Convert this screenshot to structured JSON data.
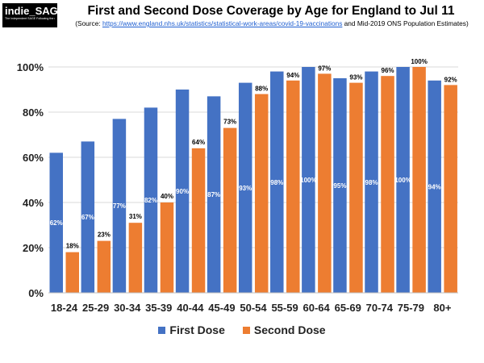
{
  "logo": {
    "name": "indie_SAGE",
    "tagline": "The Independent SAGE Following the evidence"
  },
  "title": "First and Second Dose Coverage by Age for England to Jul 11",
  "source": {
    "prefix": "(Source: ",
    "url": "https://www.england.nhs.uk/statistics/statistical-work-areas/covid-19-vaccinations",
    "suffix": " and Mid-2019 ONS Population Estimates)"
  },
  "colors": {
    "first_dose": "#4472C4",
    "second_dose": "#ED7D31",
    "grid": "#d9d9d9"
  },
  "chart_data": {
    "type": "bar",
    "categories": [
      "18-24",
      "25-29",
      "30-34",
      "35-39",
      "40-44",
      "45-49",
      "50-54",
      "55-59",
      "60-64",
      "65-69",
      "70-74",
      "75-79",
      "80+"
    ],
    "series": [
      {
        "name": "First Dose",
        "values": [
          62,
          67,
          77,
          82,
          90,
          87,
          93,
          98,
          100,
          95,
          98,
          100,
          94
        ],
        "labels": [
          "62%",
          "67%",
          "77%",
          "82%",
          "90%",
          "87%",
          "93%",
          "98%",
          "100%",
          "95%",
          "98%",
          "100%",
          "94%"
        ]
      },
      {
        "name": "Second Dose",
        "values": [
          18,
          23,
          31,
          40,
          64,
          73,
          88,
          94,
          97,
          93,
          96,
          100,
          92
        ],
        "labels": [
          "18%",
          "23%",
          "31%",
          "40%",
          "64%",
          "73%",
          "88%",
          "94%",
          "97%",
          "93%",
          "96%",
          "100%",
          "92%"
        ]
      }
    ],
    "ylim": [
      0,
      100
    ],
    "y_ticks": [
      "0%",
      "20%",
      "40%",
      "60%",
      "80%",
      "100%"
    ],
    "grid": true,
    "legend_position": "bottom"
  }
}
